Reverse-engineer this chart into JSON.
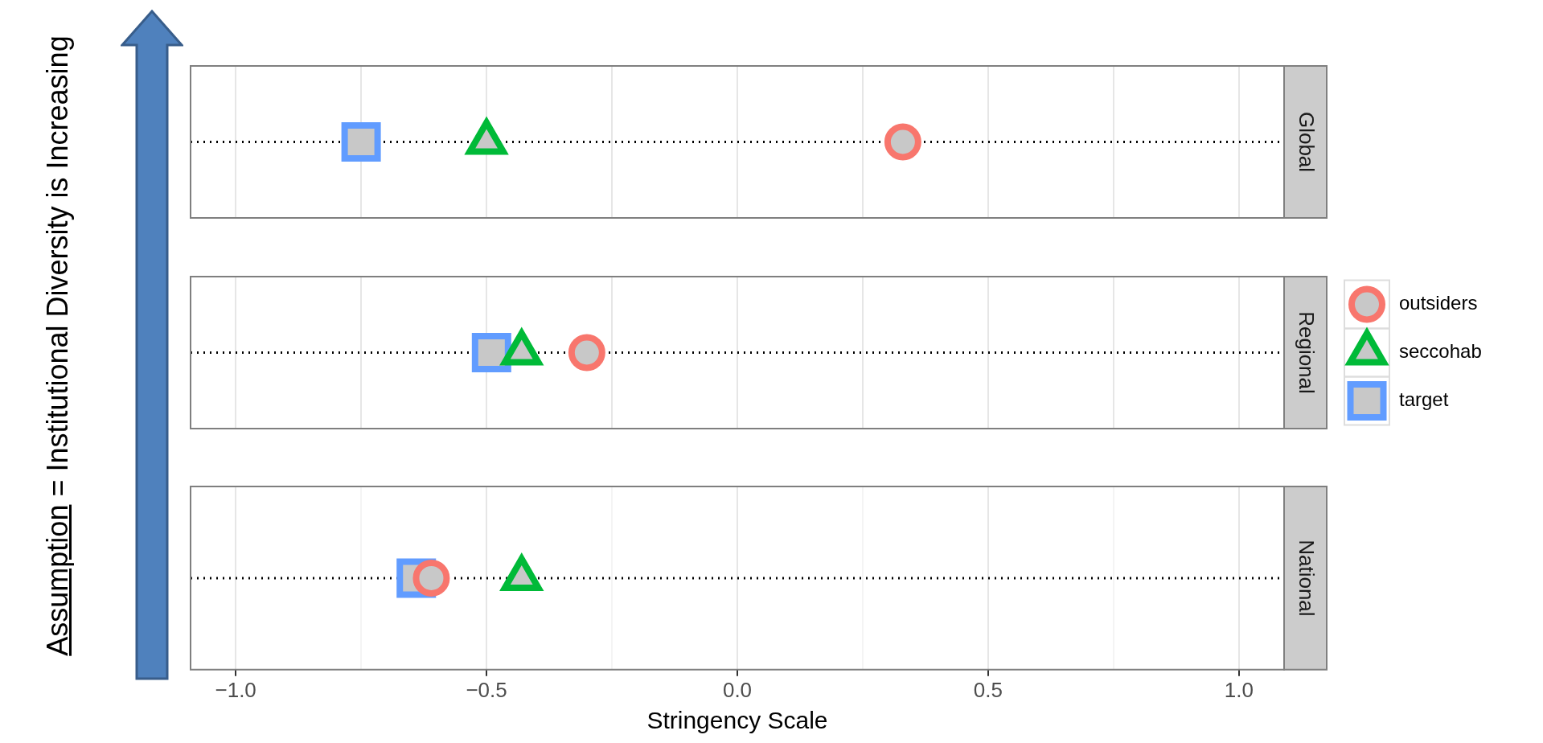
{
  "chart_data": [
    {
      "type": "scatter",
      "orientation": "horizontal",
      "ylabel": "Assumption = Institutional Diversity is  Increasing",
      "categories": [
        "Global"
      ],
      "xlim": [
        -1.09,
        1.09
      ],
      "xticks": [
        -1,
        -0.75,
        -0.5,
        -0.25,
        0,
        0.25,
        0.5,
        0.75,
        1
      ],
      "tick_labels": "y",
      "grid": "x",
      "ref_lines": [
        {
          "axis": "y",
          "value": "Global",
          "color": "#000000",
          "line_style": "dotted"
        }
      ],
      "series": [
        {
          "color": "#f8766d",
          "marker": "circle",
          "values": [
            0.33
          ]
        },
        {
          "color": "#00ba38",
          "marker": "triangle",
          "values": [
            -0.5
          ]
        },
        {
          "color": "#619cff",
          "marker": "square",
          "values": [
            -0.75
          ]
        }
      ]
    },
    {
      "type": "scatter",
      "orientation": "horizontal",
      "categories": [
        "Regional"
      ],
      "xlim": [
        -1.09,
        1.09
      ],
      "xticks": [
        -1,
        -0.75,
        -0.5,
        -0.25,
        0,
        0.25,
        0.5,
        0.75,
        1
      ],
      "tick_labels": "y",
      "grid": "x",
      "legend": "right",
      "ref_lines": [
        {
          "axis": "y",
          "value": "Regional",
          "color": "#000000",
          "line_style": "dotted"
        }
      ],
      "series": [
        {
          "name": "outsiders",
          "color": "#f8766d",
          "marker": "circle",
          "values": [
            -0.3
          ]
        },
        {
          "name": "seccohab",
          "color": "#00ba38",
          "marker": "triangle",
          "values": [
            -0.43
          ]
        },
        {
          "name": "target",
          "color": "#619cff",
          "marker": "square",
          "values": [
            -0.49
          ]
        }
      ]
    },
    {
      "type": "scatter",
      "orientation": "horizontal",
      "categories": [
        "National"
      ],
      "xlabel": "Stringency Scale",
      "xlim": [
        -1.09,
        1.09
      ],
      "xticks": [
        {
          "value": -1,
          "label": "−1.0"
        },
        {
          "value": -0.75,
          "label": null
        },
        {
          "value": -0.5,
          "label": "−0.5"
        },
        {
          "value": -0.25,
          "label": null
        },
        {
          "value": 0,
          "label": "0.0"
        },
        {
          "value": 0.25,
          "label": null
        },
        {
          "value": 0.5,
          "label": "0.5"
        },
        {
          "value": 0.75,
          "label": null
        },
        {
          "value": 1,
          "label": "1.0"
        }
      ],
      "grid": "x",
      "ref_lines": [
        {
          "axis": "y",
          "value": "National",
          "color": "#000000",
          "line_style": "dotted"
        }
      ],
      "series": [
        {
          "color": "#f8766d",
          "marker": "circle",
          "values": [
            -0.61
          ]
        },
        {
          "color": "#00ba38",
          "marker": "triangle",
          "values": [
            -0.43
          ]
        },
        {
          "color": "#619cff",
          "marker": "square",
          "values": [
            -0.64
          ]
        }
      ]
    }
  ]
}
